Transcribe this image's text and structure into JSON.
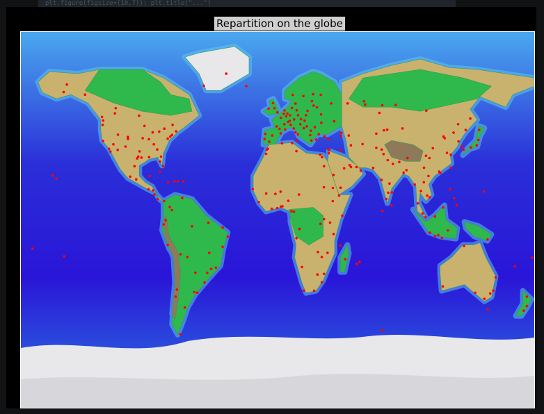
{
  "header": {
    "code_snippet": "plt.figure(figsize=(10,7)); plt.title(\"...\")"
  },
  "figure": {
    "title": "Repartition on the globe",
    "marker_color": "#ff0000",
    "colors": {
      "deep_ocean": "#2a15d8",
      "ocean": "#1d6ed8",
      "shallow": "#5cc6f0",
      "lowland": "#2fb84c",
      "upland": "#c9b26e",
      "highland": "#8e7a5a",
      "ice": "#e8e8ea"
    },
    "points": [
      [
        -122.4,
        37.8
      ],
      [
        -118.2,
        34.0
      ],
      [
        -117.2,
        32.7
      ],
      [
        -112.1,
        33.5
      ],
      [
        -105.0,
        39.7
      ],
      [
        -104.9,
        38.8
      ],
      [
        -96.8,
        32.8
      ],
      [
        -95.4,
        29.8
      ],
      [
        -97.7,
        30.3
      ],
      [
        -90.1,
        30.0
      ],
      [
        -87.6,
        41.9
      ],
      [
        -84.4,
        33.7
      ],
      [
        -80.2,
        25.8
      ],
      [
        -81.7,
        30.3
      ],
      [
        -82.5,
        27.9
      ],
      [
        -77.0,
        38.9
      ],
      [
        -74.0,
        40.7
      ],
      [
        -71.1,
        42.4
      ],
      [
        -75.2,
        39.9
      ],
      [
        -79.4,
        43.7
      ],
      [
        -73.6,
        45.5
      ],
      [
        -83.0,
        42.3
      ],
      [
        -86.8,
        36.2
      ],
      [
        -90.2,
        38.6
      ],
      [
        -94.6,
        39.1
      ],
      [
        -93.3,
        45.0
      ],
      [
        -98.5,
        29.4
      ],
      [
        -106.6,
        35.1
      ],
      [
        -111.9,
        40.8
      ],
      [
        -115.1,
        36.2
      ],
      [
        -122.7,
        45.5
      ],
      [
        -122.3,
        47.6
      ],
      [
        -123.1,
        49.3
      ],
      [
        -114.1,
        51.0
      ],
      [
        -113.5,
        53.5
      ],
      [
        -97.1,
        49.9
      ],
      [
        -135.0,
        60.0
      ],
      [
        -150.0,
        61.2
      ],
      [
        -147.7,
        64.8
      ],
      [
        -99.1,
        19.4
      ],
      [
        -103.3,
        20.7
      ],
      [
        -100.3,
        25.7
      ],
      [
        -89.6,
        21.0
      ],
      [
        -90.5,
        14.6
      ],
      [
        -87.2,
        14.1
      ],
      [
        -86.3,
        12.1
      ],
      [
        -84.1,
        9.9
      ],
      [
        -79.5,
        9.0
      ],
      [
        -82.4,
        23.1
      ],
      [
        -76.8,
        18.0
      ],
      [
        -72.3,
        18.5
      ],
      [
        -69.9,
        18.5
      ],
      [
        -66.1,
        18.4
      ],
      [
        -74.1,
        4.7
      ],
      [
        -75.6,
        6.2
      ],
      [
        -66.9,
        10.5
      ],
      [
        -78.5,
        -0.2
      ],
      [
        -79.9,
        -2.2
      ],
      [
        -77.0,
        -12.0
      ],
      [
        -68.1,
        -16.5
      ],
      [
        -63.2,
        -17.8
      ],
      [
        -57.6,
        -25.3
      ],
      [
        -58.4,
        -34.6
      ],
      [
        -56.2,
        -34.9
      ],
      [
        -70.6,
        -33.4
      ],
      [
        -71.5,
        -36.8
      ],
      [
        -46.6,
        -23.5
      ],
      [
        -43.2,
        -22.9
      ],
      [
        -47.9,
        -15.8
      ],
      [
        -38.5,
        -12.9
      ],
      [
        -34.9,
        -8.1
      ],
      [
        -38.5,
        -3.7
      ],
      [
        -48.5,
        -1.4
      ],
      [
        -60.0,
        -3.1
      ],
      [
        -51.2,
        -30.0
      ],
      [
        -49.3,
        -25.4
      ],
      [
        -68.3,
        -54.8
      ],
      [
        -65.0,
        -42.0
      ],
      [
        -157.8,
        21.3
      ],
      [
        -155.1,
        19.7
      ],
      [
        -149.6,
        -17.5
      ],
      [
        -171.8,
        -13.8
      ],
      [
        -0.1,
        51.5
      ],
      [
        -2.2,
        53.5
      ],
      [
        -3.2,
        55.9
      ],
      [
        -6.3,
        53.3
      ],
      [
        2.3,
        48.9
      ],
      [
        4.8,
        45.8
      ],
      [
        5.4,
        43.3
      ],
      [
        1.4,
        43.6
      ],
      [
        -0.6,
        44.8
      ],
      [
        -3.7,
        40.4
      ],
      [
        2.2,
        41.4
      ],
      [
        -9.1,
        38.7
      ],
      [
        -8.6,
        41.2
      ],
      [
        -5.9,
        37.4
      ],
      [
        12.5,
        41.9
      ],
      [
        9.2,
        45.5
      ],
      [
        11.3,
        43.8
      ],
      [
        14.3,
        40.9
      ],
      [
        13.4,
        38.1
      ],
      [
        4.9,
        52.4
      ],
      [
        4.4,
        50.8
      ],
      [
        6.1,
        49.6
      ],
      [
        13.4,
        52.5
      ],
      [
        10.0,
        53.6
      ],
      [
        11.6,
        48.1
      ],
      [
        8.7,
        50.1
      ],
      [
        6.9,
        50.9
      ],
      [
        8.5,
        47.4
      ],
      [
        7.4,
        46.9
      ],
      [
        16.4,
        48.2
      ],
      [
        14.4,
        50.1
      ],
      [
        19.0,
        47.5
      ],
      [
        21.0,
        52.2
      ],
      [
        19.9,
        50.1
      ],
      [
        12.6,
        55.7
      ],
      [
        10.7,
        59.9
      ],
      [
        18.1,
        59.3
      ],
      [
        24.9,
        60.2
      ],
      [
        24.1,
        56.9
      ],
      [
        25.3,
        54.7
      ],
      [
        27.6,
        53.9
      ],
      [
        30.5,
        50.5
      ],
      [
        30.7,
        46.5
      ],
      [
        26.1,
        44.4
      ],
      [
        23.3,
        42.7
      ],
      [
        23.7,
        38.0
      ],
      [
        22.9,
        40.6
      ],
      [
        20.5,
        44.8
      ],
      [
        16.0,
        45.8
      ],
      [
        18.4,
        43.9
      ],
      [
        28.9,
        41.0
      ],
      [
        32.9,
        39.9
      ],
      [
        27.1,
        38.4
      ],
      [
        35.5,
        38.7
      ],
      [
        37.6,
        55.8
      ],
      [
        30.3,
        59.9
      ],
      [
        49.1,
        55.8
      ],
      [
        44.5,
        40.2
      ],
      [
        44.8,
        41.7
      ],
      [
        49.9,
        40.4
      ],
      [
        39.7,
        47.2
      ],
      [
        60.6,
        56.8
      ],
      [
        82.9,
        55.0
      ],
      [
        104.3,
        52.3
      ],
      [
        73.4,
        54.9
      ],
      [
        61.4,
        55.2
      ],
      [
        135.1,
        48.5
      ],
      [
        131.9,
        43.1
      ],
      [
        69.2,
        41.3
      ],
      [
        71.4,
        51.2
      ],
      [
        76.9,
        43.2
      ],
      [
        74.6,
        42.9
      ],
      [
        31.2,
        30.0
      ],
      [
        29.9,
        31.2
      ],
      [
        32.6,
        25.7
      ],
      [
        32.5,
        15.6
      ],
      [
        38.7,
        9.0
      ],
      [
        36.8,
        -1.3
      ],
      [
        39.3,
        -6.8
      ],
      [
        32.6,
        0.3
      ],
      [
        30.1,
        -1.9
      ],
      [
        28.3,
        -15.4
      ],
      [
        31.0,
        -17.8
      ],
      [
        35.0,
        -15.8
      ],
      [
        32.6,
        -25.9
      ],
      [
        28.0,
        -26.2
      ],
      [
        18.4,
        -33.9
      ],
      [
        31.0,
        -29.9
      ],
      [
        25.6,
        -33.9
      ],
      [
        17.1,
        -22.6
      ],
      [
        13.2,
        -8.8
      ],
      [
        15.3,
        -4.3
      ],
      [
        15.3,
        -4.4
      ],
      [
        11.5,
        3.9
      ],
      [
        9.7,
        4.1
      ],
      [
        7.5,
        9.1
      ],
      [
        3.4,
        6.5
      ],
      [
        2.4,
        6.4
      ],
      [
        -0.2,
        5.6
      ],
      [
        -4.0,
        5.3
      ],
      [
        -13.2,
        8.5
      ],
      [
        -17.4,
        14.7
      ],
      [
        -8.0,
        12.6
      ],
      [
        -1.5,
        12.4
      ],
      [
        2.1,
        13.5
      ],
      [
        15.0,
        12.1
      ],
      [
        13.2,
        32.9
      ],
      [
        10.2,
        36.8
      ],
      [
        3.1,
        36.7
      ],
      [
        -7.6,
        33.6
      ],
      [
        -8.0,
        31.6
      ],
      [
        -6.8,
        34.0
      ],
      [
        44.0,
        -12.3
      ],
      [
        47.5,
        -18.9
      ],
      [
        57.5,
        -20.2
      ],
      [
        55.5,
        -21.1
      ],
      [
        45.3,
        2.0
      ],
      [
        43.1,
        11.6
      ],
      [
        38.8,
        15.3
      ],
      [
        39.2,
        21.5
      ],
      [
        46.7,
        24.7
      ],
      [
        50.6,
        26.2
      ],
      [
        51.5,
        25.3
      ],
      [
        55.3,
        25.3
      ],
      [
        58.4,
        23.6
      ],
      [
        44.2,
        15.4
      ],
      [
        35.9,
        31.9
      ],
      [
        35.5,
        33.9
      ],
      [
        36.3,
        33.5
      ],
      [
        44.4,
        33.3
      ],
      [
        51.4,
        35.7
      ],
      [
        59.6,
        36.3
      ],
      [
        69.2,
        34.5
      ],
      [
        73.0,
        33.7
      ],
      [
        74.3,
        31.5
      ],
      [
        67.0,
        24.9
      ],
      [
        72.9,
        19.1
      ],
      [
        77.2,
        28.6
      ],
      [
        80.9,
        26.8
      ],
      [
        88.4,
        22.6
      ],
      [
        80.3,
        13.1
      ],
      [
        77.6,
        13.0
      ],
      [
        76.3,
        10.0
      ],
      [
        78.5,
        17.4
      ],
      [
        85.3,
        27.7
      ],
      [
        90.4,
        23.8
      ],
      [
        79.9,
        6.9
      ],
      [
        73.5,
        4.2
      ],
      [
        96.2,
        16.9
      ],
      [
        100.5,
        13.8
      ],
      [
        98.3,
        7.9
      ],
      [
        105.8,
        21.0
      ],
      [
        106.7,
        10.8
      ],
      [
        104.9,
        11.6
      ],
      [
        102.6,
        18.0
      ],
      [
        101.7,
        3.1
      ],
      [
        103.8,
        1.3
      ],
      [
        106.8,
        -6.2
      ],
      [
        110.4,
        -7.8
      ],
      [
        112.7,
        -7.3
      ],
      [
        115.2,
        -8.7
      ],
      [
        119.4,
        -5.1
      ],
      [
        125.6,
        7.1
      ],
      [
        121.0,
        14.6
      ],
      [
        123.9,
        10.3
      ],
      [
        110.4,
        1.6
      ],
      [
        116.1,
        5.9
      ],
      [
        114.2,
        22.3
      ],
      [
        113.3,
        23.1
      ],
      [
        121.5,
        25.0
      ],
      [
        121.5,
        31.2
      ],
      [
        118.8,
        32.1
      ],
      [
        116.4,
        39.9
      ],
      [
        117.2,
        39.1
      ],
      [
        123.4,
        41.8
      ],
      [
        126.6,
        45.8
      ],
      [
        108.9,
        34.3
      ],
      [
        104.1,
        30.7
      ],
      [
        106.5,
        29.6
      ],
      [
        102.7,
        25.0
      ],
      [
        91.1,
        29.6
      ],
      [
        87.6,
        43.8
      ],
      [
        126.9,
        37.6
      ],
      [
        129.1,
        35.2
      ],
      [
        139.7,
        35.7
      ],
      [
        135.5,
        34.7
      ],
      [
        130.4,
        33.6
      ],
      [
        141.3,
        43.1
      ],
      [
        140.9,
        38.3
      ],
      [
        147.2,
        -9.4
      ],
      [
        153.0,
        -27.5
      ],
      [
        151.2,
        -33.9
      ],
      [
        149.1,
        -35.3
      ],
      [
        145.0,
        -37.8
      ],
      [
        138.6,
        -34.9
      ],
      [
        115.9,
        -31.9
      ],
      [
        130.8,
        -12.5
      ],
      [
        147.3,
        -42.9
      ],
      [
        174.8,
        -36.8
      ],
      [
        174.8,
        -41.3
      ],
      [
        172.6,
        -43.5
      ],
      [
        178.4,
        -18.1
      ],
      [
        166.4,
        -22.3
      ],
      [
        144.8,
        13.5
      ],
      [
        73.5,
        -53.0
      ],
      [
        -21.9,
        64.1
      ],
      [
        -51.7,
        64.2
      ],
      [
        -36.0,
        70.0
      ]
    ]
  }
}
